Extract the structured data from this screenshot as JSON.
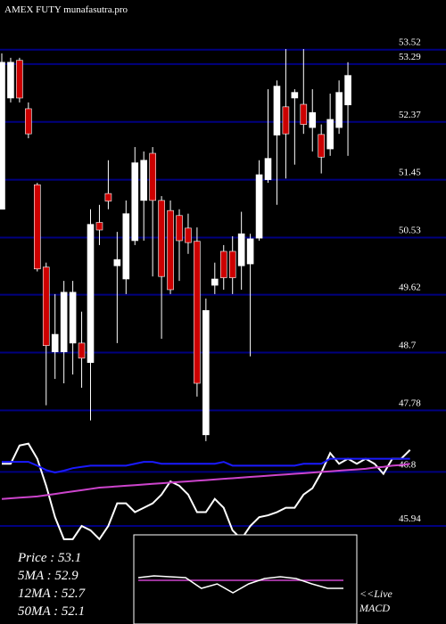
{
  "chart_data": {
    "type": "candlestick",
    "title": "AMEX  FUTY munafasutra.pro",
    "ylim": [
      44.38,
      54.31
    ],
    "yticks": [
      53.52,
      53.29,
      52.37,
      51.45,
      50.53,
      49.62,
      48.7,
      47.78,
      46.8,
      45.94
    ],
    "grid": true,
    "up_color": "#ffffff",
    "down_color": "#cc0000",
    "grid_color": "#000080",
    "open": [
      50.98,
      52.75,
      53.35,
      52.58,
      51.37,
      50.06,
      48.71,
      48.71,
      48.85,
      48.85,
      48.54,
      50.77,
      51.23,
      50.08,
      49.87,
      50.48,
      51.12,
      51.87,
      51.12,
      50.96,
      50.88,
      50.68,
      50.47,
      47.39,
      49.77,
      50.31,
      50.31,
      50.08,
      50.11,
      50.52,
      51.45,
      52.16,
      52.61,
      52.75,
      52.65,
      52.28,
      52.17,
      51.94,
      52.28,
      52.64
    ],
    "high": [
      53.46,
      53.39,
      53.39,
      52.68,
      51.4,
      50.13,
      49.63,
      49.84,
      49.84,
      49.35,
      50.98,
      51.05,
      51.76,
      50.62,
      51.12,
      51.97,
      51.9,
      51.97,
      51.19,
      51.12,
      50.98,
      50.91,
      50.69,
      49.56,
      50.13,
      50.41,
      50.55,
      50.94,
      50.59,
      51.76,
      52.89,
      53.03,
      53.53,
      52.89,
      53.53,
      52.89,
      52.33,
      52.82,
      53.03,
      53.32
    ],
    "low": [
      50.98,
      52.68,
      52.68,
      52.11,
      49.99,
      47.86,
      48.28,
      48.21,
      48.35,
      48.14,
      47.62,
      50.41,
      50.98,
      48.85,
      49.63,
      50.41,
      50.48,
      49.91,
      48.92,
      49.63,
      49.84,
      50.27,
      48.0,
      47.29,
      49.63,
      49.7,
      49.63,
      49.7,
      48.64,
      50.48,
      51.4,
      51.05,
      51.47,
      51.69,
      52.18,
      51.9,
      51.55,
      51.83,
      52.18,
      51.83
    ],
    "close": [
      53.32,
      53.32,
      52.75,
      52.18,
      50.03,
      48.81,
      48.99,
      49.66,
      49.66,
      48.61,
      50.74,
      50.65,
      51.11,
      50.18,
      50.91,
      51.72,
      51.76,
      51.12,
      49.91,
      49.7,
      50.48,
      50.45,
      48.21,
      49.37,
      49.87,
      49.89,
      49.89,
      50.59,
      50.51,
      51.53,
      51.79,
      52.94,
      52.18,
      52.84,
      52.33,
      52.52,
      51.81,
      52.41,
      52.84,
      53.11
    ],
    "lines": [
      {
        "color": "#ffffff",
        "values": [
          46.93,
          46.93,
          47.22,
          47.25,
          47.01,
          46.58,
          46.08,
          45.73,
          45.73,
          45.94,
          45.87,
          45.73,
          45.94,
          46.3,
          46.3,
          46.16,
          46.23,
          46.3,
          46.44,
          46.65,
          46.58,
          46.44,
          46.16,
          46.16,
          46.37,
          46.23,
          45.87,
          45.73,
          45.94,
          46.08,
          46.11,
          46.16,
          46.23,
          46.23,
          46.44,
          46.54,
          46.79,
          47.1,
          46.93,
          47.01,
          46.93,
          47.01,
          46.93,
          46.77,
          47.01,
          47.01,
          47.15
        ]
      },
      {
        "color": "#1a1aff",
        "values": [
          46.96,
          46.96,
          46.96,
          46.96,
          46.9,
          46.83,
          46.79,
          46.82,
          46.86,
          46.88,
          46.9,
          46.9,
          46.9,
          46.9,
          46.9,
          46.93,
          46.96,
          46.96,
          46.93,
          46.93,
          46.93,
          46.93,
          46.93,
          46.93,
          46.93,
          46.96,
          46.9,
          46.9,
          46.9,
          46.9,
          46.9,
          46.9,
          46.9,
          46.9,
          46.93,
          46.93,
          46.93,
          47.01,
          47.01,
          47.01,
          47.01,
          47.01,
          47.01,
          47.01,
          47.01,
          47.01,
          47.01
        ]
      },
      {
        "color": "#cc44cc",
        "values": [
          46.37,
          46.38,
          46.39,
          46.4,
          46.41,
          46.43,
          46.45,
          46.47,
          46.49,
          46.51,
          46.53,
          46.55,
          46.56,
          46.57,
          46.58,
          46.59,
          46.6,
          46.61,
          46.62,
          46.63,
          46.64,
          46.65,
          46.66,
          46.67,
          46.68,
          46.69,
          46.7,
          46.71,
          46.72,
          46.73,
          46.74,
          46.75,
          46.76,
          46.77,
          46.78,
          46.79,
          46.8,
          46.81,
          46.82,
          46.83,
          46.84,
          46.85,
          46.87,
          46.88,
          46.9,
          46.91,
          46.93
        ]
      }
    ],
    "legend": [
      "Price   : 53.1",
      "5MA : 52.9",
      "12MA : 52.7",
      "50MA : 52.1"
    ],
    "macd": {
      "label": [
        "<<Live",
        "MACD"
      ],
      "ylim": [
        -1,
        1
      ],
      "series": [
        {
          "color": "#ffffff",
          "values": [
            0.04,
            0.08,
            0.06,
            0.04,
            -0.2,
            -0.1,
            -0.3,
            -0.1,
            0.02,
            0.06,
            0.02,
            -0.1,
            -0.2,
            -0.2
          ]
        },
        {
          "color": "#cc44cc",
          "values": [
            -0.02,
            -0.02,
            -0.02,
            -0.02,
            -0.02,
            -0.02,
            -0.02,
            -0.02,
            -0.02,
            -0.02,
            -0.02,
            -0.02,
            -0.02,
            -0.02
          ]
        }
      ]
    }
  }
}
